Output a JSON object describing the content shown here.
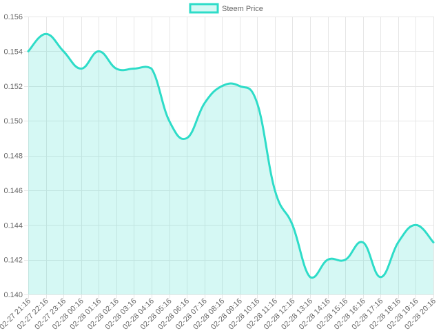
{
  "chart_data": {
    "type": "area",
    "title": "",
    "xlabel": "",
    "ylabel": "",
    "legend_position": "top",
    "grid": true,
    "ylim": [
      0.14,
      0.156
    ],
    "yticks": [
      0.14,
      0.142,
      0.144,
      0.146,
      0.148,
      0.15,
      0.152,
      0.154,
      0.156
    ],
    "categories": [
      "02-27 21:16",
      "02-27 22:16",
      "02-27 23:16",
      "02-28 00:16",
      "02-28 01:16",
      "02-28 02:16",
      "02-28 03:16",
      "02-28 04:16",
      "02-28 05:16",
      "02-28 06:16",
      "02-28 07:16",
      "02-28 08:16",
      "02-28 09:16",
      "02-28 10:16",
      "02-28 11:16",
      "02-28 12:16",
      "02-28 13:16",
      "02-28 14:16",
      "02-28 15:16",
      "02-28 16:16",
      "02-28 17:16",
      "02-28 18:16",
      "02-28 19:16",
      "02-28 20:16"
    ],
    "series": [
      {
        "name": "Steem Price",
        "color": "#2edcc8",
        "fill": "rgba(46, 220, 200, 0.2)",
        "values": [
          0.154,
          0.155,
          0.154,
          0.153,
          0.154,
          0.153,
          0.153,
          0.153,
          0.15,
          0.149,
          0.151,
          0.152,
          0.152,
          0.151,
          0.146,
          0.144,
          0.141,
          0.142,
          0.142,
          0.143,
          0.141,
          0.143,
          0.144,
          0.143
        ]
      }
    ]
  }
}
